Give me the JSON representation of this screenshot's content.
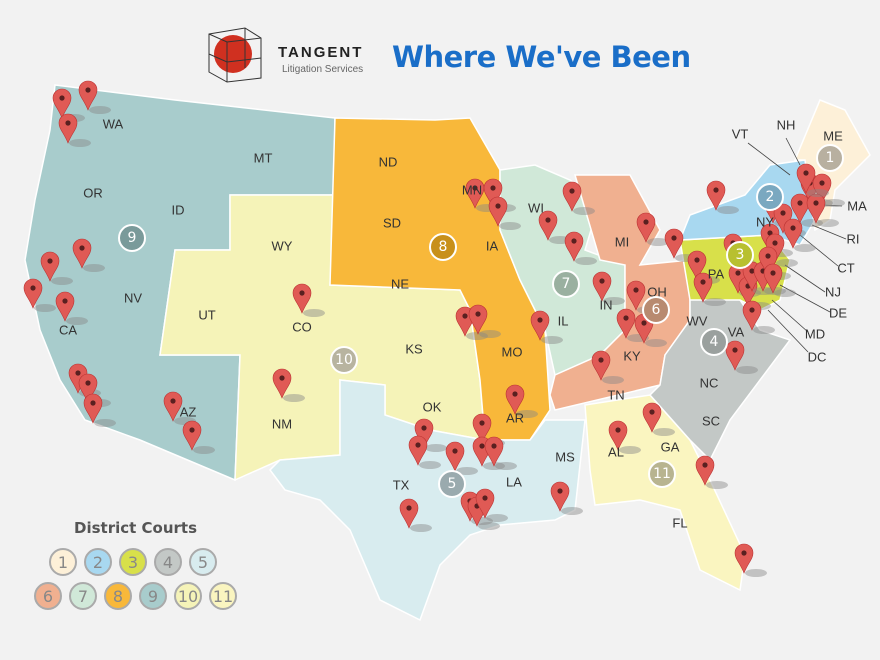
{
  "header": {
    "brand": "TANGENT",
    "brand_subtitle": "Litigation Services",
    "title": "Where We've Been",
    "title_color": "#1a6ec8"
  },
  "states": [
    "WA",
    "OR",
    "CA",
    "ID",
    "NV",
    "MT",
    "WY",
    "UT",
    "AZ",
    "CO",
    "NM",
    "ND",
    "SD",
    "NE",
    "KS",
    "OK",
    "TX",
    "MN",
    "IA",
    "MO",
    "AR",
    "LA",
    "WI",
    "IL",
    "MI",
    "IN",
    "OH",
    "KY",
    "TN",
    "MS",
    "AL",
    "GA",
    "FL",
    "SC",
    "NC",
    "VA",
    "WV",
    "PA",
    "NY",
    "VT",
    "NH",
    "ME",
    "MA",
    "RI",
    "CT",
    "NJ",
    "DE",
    "MD",
    "DC"
  ],
  "circuit_markers": [
    "1",
    "2",
    "3",
    "4",
    "5",
    "6",
    "7",
    "8",
    "9",
    "10",
    "11"
  ],
  "legend": {
    "title": "District Courts",
    "items": [
      {
        "label": "1",
        "color": "#fdf0d8"
      },
      {
        "label": "2",
        "color": "#a8d8f0"
      },
      {
        "label": "3",
        "color": "#d8e04a"
      },
      {
        "label": "4",
        "color": "#c3c8c6"
      },
      {
        "label": "5",
        "color": "#d8ecef"
      },
      {
        "label": "6",
        "color": "#f0b090"
      },
      {
        "label": "7",
        "color": "#d0e8d8"
      },
      {
        "label": "8",
        "color": "#f8b83a"
      },
      {
        "label": "9",
        "color": "#a8cccc"
      },
      {
        "label": "10",
        "color": "#f5f3b8"
      },
      {
        "label": "11",
        "color": "#faf5c0"
      }
    ]
  },
  "pin_color": "#e05a55"
}
